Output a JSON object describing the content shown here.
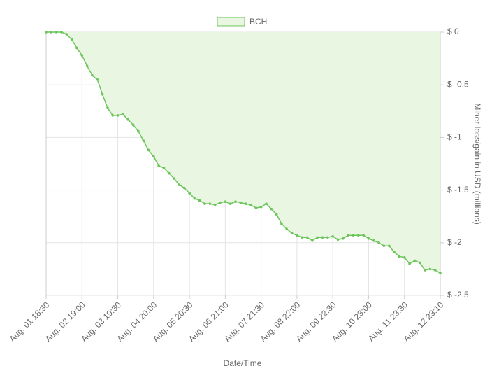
{
  "chart_data": {
    "type": "area",
    "legend": "BCH",
    "x_label": "Date/Time",
    "y_label": "Miner loss/gain in USD (millions)",
    "color": "#6cc55a",
    "fill_color": "#e8f6e2",
    "grid": true,
    "y_axis_side": "right",
    "categories": [
      "Aug. 01 18:30",
      null,
      null,
      null,
      null,
      null,
      null,
      "Aug. 02 19:00",
      null,
      null,
      null,
      null,
      null,
      null,
      "Aug. 03 19:30",
      null,
      null,
      null,
      null,
      null,
      null,
      "Aug. 04 20:00",
      null,
      null,
      null,
      null,
      null,
      null,
      "Aug. 05 20:30",
      null,
      null,
      null,
      null,
      null,
      null,
      "Aug. 06 21:00",
      null,
      null,
      null,
      null,
      null,
      null,
      "Aug. 07 21:30",
      null,
      null,
      null,
      null,
      null,
      null,
      "Aug. 08 22:00",
      null,
      null,
      null,
      null,
      null,
      null,
      "Aug. 09 22:30",
      null,
      null,
      null,
      null,
      null,
      null,
      "Aug. 10 23:00",
      null,
      null,
      null,
      null,
      null,
      null,
      "Aug. 11 23:30",
      null,
      null,
      null,
      null,
      null,
      null,
      "Aug. 12 23:10"
    ],
    "values": [
      0,
      0,
      0,
      0,
      -0.02,
      -0.07,
      -0.15,
      -0.22,
      -0.32,
      -0.41,
      -0.45,
      -0.59,
      -0.72,
      -0.79,
      -0.79,
      -0.78,
      -0.83,
      -0.88,
      -0.94,
      -1.03,
      -1.12,
      -1.18,
      -1.27,
      -1.29,
      -1.34,
      -1.39,
      -1.45,
      -1.48,
      -1.53,
      -1.58,
      -1.6,
      -1.63,
      -1.63,
      -1.64,
      -1.62,
      -1.61,
      -1.63,
      -1.61,
      -1.62,
      -1.63,
      -1.64,
      -1.67,
      -1.66,
      -1.63,
      -1.68,
      -1.73,
      -1.82,
      -1.87,
      -1.91,
      -1.93,
      -1.95,
      -1.95,
      -1.98,
      -1.95,
      -1.95,
      -1.95,
      -1.94,
      -1.97,
      -1.96,
      -1.93,
      -1.93,
      -1.93,
      -1.93,
      -1.96,
      -1.98,
      -2.0,
      -2.03,
      -2.03,
      -2.09,
      -2.13,
      -2.14,
      -2.2,
      -2.17,
      -2.19,
      -2.26,
      -2.25,
      -2.26,
      -2.29
    ],
    "ylim": [
      0,
      -2.5
    ],
    "yticks": [
      {
        "value": 0,
        "label": "$ 0"
      },
      {
        "value": -0.5,
        "label": "$ -0.5"
      },
      {
        "value": -1,
        "label": "$ -1"
      },
      {
        "value": -1.5,
        "label": "$ -1.5"
      },
      {
        "value": -2,
        "label": "$ -2"
      },
      {
        "value": -2.5,
        "label": "$ -2.5"
      }
    ]
  }
}
